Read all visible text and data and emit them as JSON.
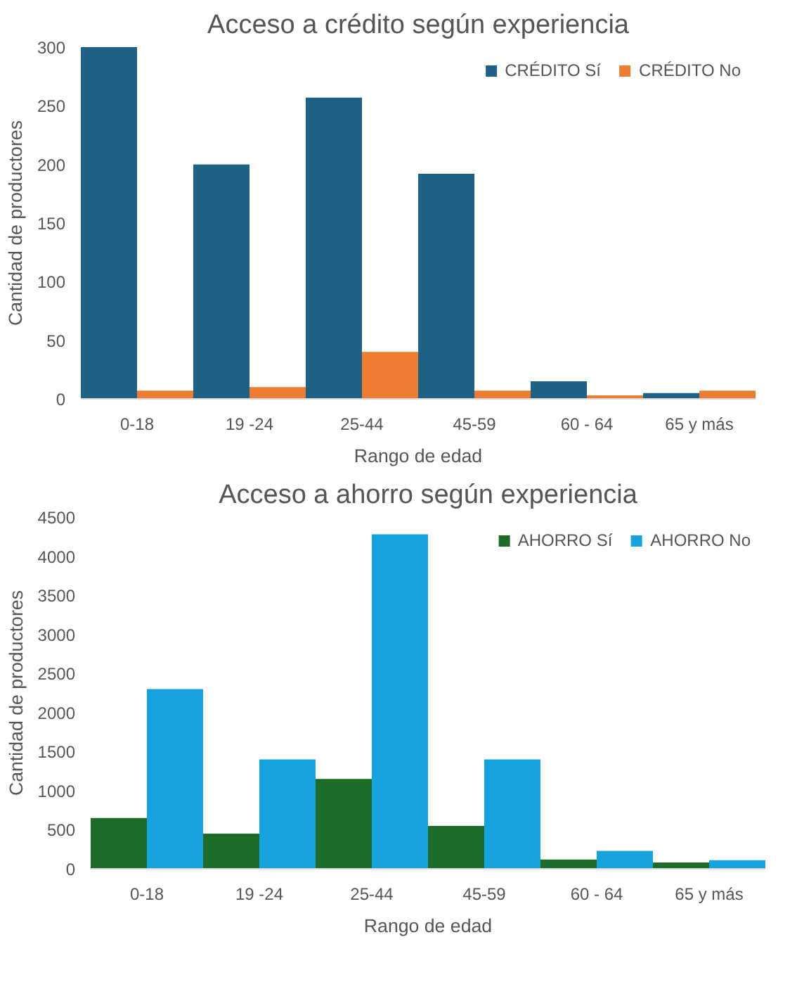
{
  "chart_data": [
    {
      "type": "bar",
      "title": "Acceso a crédito según experiencia",
      "xlabel": "Rango de edad",
      "ylabel": "Cantidad de productores",
      "categories": [
        "0-18",
        "19 -24",
        "25-44",
        "45-59",
        "60 - 64",
        "65 y más"
      ],
      "series": [
        {
          "name": "CRÉDITO Sí",
          "color": "#1f6185",
          "values": [
            300,
            200,
            257,
            192,
            15,
            5
          ]
        },
        {
          "name": "CRÉDITO No",
          "color": "#ed7d31",
          "values": [
            7,
            10,
            40,
            7,
            3,
            7
          ]
        }
      ],
      "ylim": [
        0,
        300
      ],
      "yticks": [
        0,
        50,
        100,
        150,
        200,
        250,
        300
      ],
      "grid": false,
      "legend": "top right"
    },
    {
      "type": "bar",
      "title": "Acceso a ahorro según experiencia",
      "xlabel": "Rango de edad",
      "ylabel": "Cantidad de productores",
      "categories": [
        "0-18",
        "19 -24",
        "25-44",
        "45-59",
        "60 - 64",
        "65 y más"
      ],
      "series": [
        {
          "name": "AHORRO Sí",
          "color": "#1e6b28",
          "values": [
            650,
            450,
            1150,
            550,
            120,
            80
          ]
        },
        {
          "name": "AHORRO No",
          "color": "#16a3dd",
          "values": [
            2300,
            1400,
            4280,
            1400,
            230,
            110
          ]
        }
      ],
      "ylim": [
        0,
        4500
      ],
      "yticks": [
        0,
        500,
        1000,
        1500,
        2000,
        2500,
        3000,
        3500,
        4000,
        4500
      ],
      "grid": false,
      "legend": "top right"
    }
  ]
}
